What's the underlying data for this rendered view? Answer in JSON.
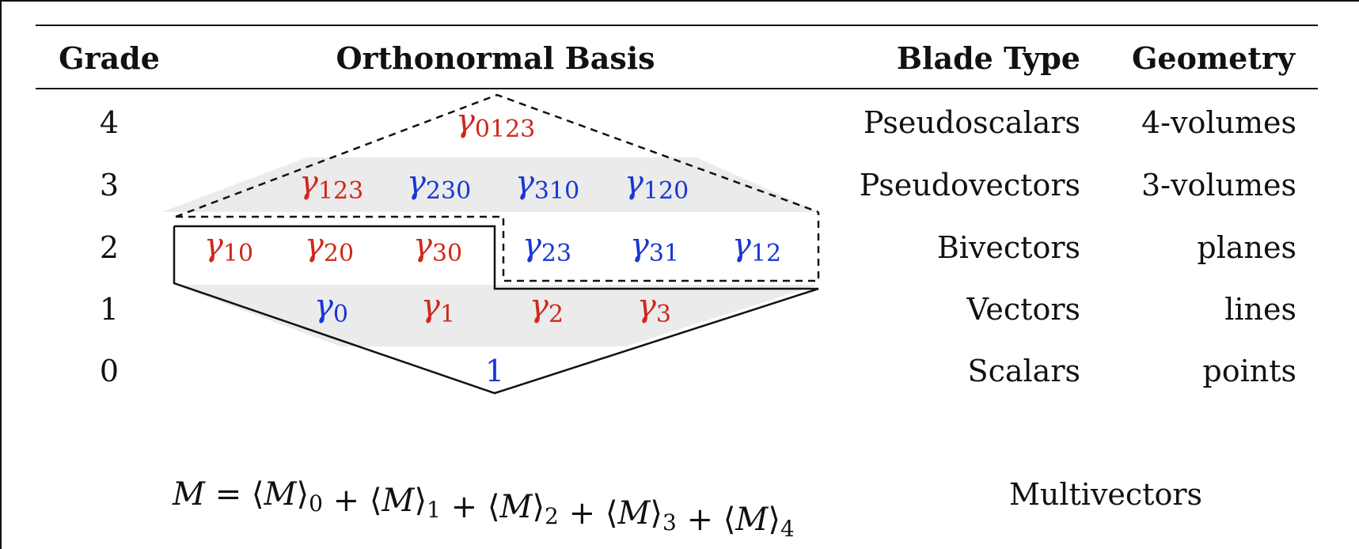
{
  "headers": {
    "grade": "Grade",
    "basis": "Orthonormal Basis",
    "blade_type": "Blade Type",
    "geometry": "Geometry"
  },
  "rows": [
    {
      "grade": "4",
      "blade_type": "Pseudoscalars",
      "geometry": "4-volumes"
    },
    {
      "grade": "3",
      "blade_type": "Pseudovectors",
      "geometry": "3-volumes"
    },
    {
      "grade": "2",
      "blade_type": "Bivectors",
      "geometry": "planes"
    },
    {
      "grade": "1",
      "blade_type": "Vectors",
      "geometry": "lines"
    },
    {
      "grade": "0",
      "blade_type": "Scalars",
      "geometry": "points"
    }
  ],
  "basis": {
    "symbol": "γ",
    "grade4": [
      {
        "sub": "0123",
        "color": "red"
      }
    ],
    "grade3": [
      {
        "sub": "123",
        "color": "red"
      },
      {
        "sub": "230",
        "color": "blue"
      },
      {
        "sub": "310",
        "color": "blue"
      },
      {
        "sub": "120",
        "color": "blue"
      }
    ],
    "grade2": [
      {
        "sub": "10",
        "color": "red"
      },
      {
        "sub": "20",
        "color": "red"
      },
      {
        "sub": "30",
        "color": "red"
      },
      {
        "sub": "23",
        "color": "blue"
      },
      {
        "sub": "31",
        "color": "blue"
      },
      {
        "sub": "12",
        "color": "blue"
      }
    ],
    "grade1": [
      {
        "sub": "0",
        "color": "blue"
      },
      {
        "sub": "1",
        "color": "red"
      },
      {
        "sub": "2",
        "color": "red"
      },
      {
        "sub": "3",
        "color": "red"
      }
    ],
    "grade0": {
      "text": "1",
      "color": "blue"
    }
  },
  "equation": {
    "lhs": "M",
    "equals": "=",
    "plus": "+",
    "term": "M",
    "subscripts": [
      "0",
      "1",
      "2",
      "3",
      "4"
    ]
  },
  "multivectors_label": "Multivectors",
  "colors": {
    "red": "#d0281c",
    "blue": "#1836d6",
    "shade": "#ebebeb",
    "rule": "#111111"
  }
}
